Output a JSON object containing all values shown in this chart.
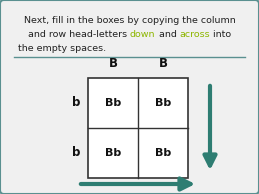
{
  "bg_color": "#f0f0f0",
  "border_color": "#5a9090",
  "text_color": "#222222",
  "text_line1": "Next, fill in the boxes by copying the column",
  "text_line2_parts": [
    {
      "text": "and row head-letters ",
      "color": "#222222"
    },
    {
      "text": "down",
      "color": "#8db600"
    },
    {
      "text": " and ",
      "color": "#222222"
    },
    {
      "text": "across",
      "color": "#8db600"
    },
    {
      "text": " into",
      "color": "#222222"
    }
  ],
  "text_line3": "the empty spaces.",
  "separator_color": "#5a9090",
  "col_headers": [
    "B",
    "B"
  ],
  "row_headers": [
    "b",
    "b"
  ],
  "cells": [
    [
      "Bb",
      "Bb"
    ],
    [
      "Bb",
      "Bb"
    ]
  ],
  "arrow_color": "#2e7d72",
  "font_size_text": 6.8,
  "font_size_table": 8.0,
  "font_size_header": 8.5
}
